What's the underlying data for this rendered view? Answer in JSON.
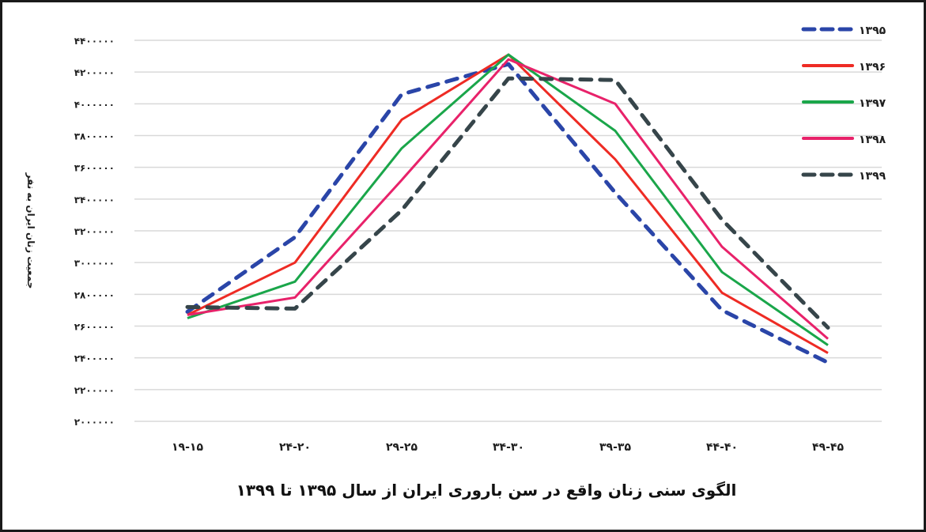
{
  "chart_data": {
    "type": "line",
    "title": "الگوی سنی زنان واقع در سن باروری ایران از سال ۱۳۹۵ تا ۱۳۹۹",
    "xlabel": "",
    "ylabel": "جمعیت زنان ایران به نفر",
    "categories": [
      "۱۹-۱۵",
      "۲۴-۲۰",
      "۲۹-۲۵",
      "۳۴-۳۰",
      "۳۹-۳۵",
      "۴۴-۴۰",
      "۴۹-۴۵"
    ],
    "categories_latin": [
      "15-19",
      "20-24",
      "25-29",
      "30-34",
      "35-39",
      "40-44",
      "45-49"
    ],
    "ylim": [
      2000000,
      4400000
    ],
    "yticks": [
      2000000,
      2200000,
      2400000,
      2600000,
      2800000,
      3000000,
      3200000,
      3400000,
      3600000,
      3800000,
      4000000,
      4200000,
      4400000
    ],
    "ytick_labels": [
      "۲۰۰۰۰۰۰",
      "۲۲۰۰۰۰۰",
      "۲۴۰۰۰۰۰",
      "۲۶۰۰۰۰۰",
      "۲۸۰۰۰۰۰",
      "۳۰۰۰۰۰۰",
      "۳۲۰۰۰۰۰",
      "۳۴۰۰۰۰۰",
      "۳۶۰۰۰۰۰",
      "۳۸۰۰۰۰۰",
      "۴۰۰۰۰۰۰",
      "۴۲۰۰۰۰۰",
      "۴۴۰۰۰۰۰"
    ],
    "grid": true,
    "legend_position": "top-right",
    "series": [
      {
        "name": "۱۳۹۵",
        "color": "#2a45a8",
        "dashed": true,
        "values": [
          2690000,
          3160000,
          4060000,
          4250000,
          3440000,
          2700000,
          2370000
        ]
      },
      {
        "name": "۱۳۹۶",
        "color": "#ee2b24",
        "dashed": false,
        "values": [
          2670000,
          3000000,
          3900000,
          4310000,
          3650000,
          2810000,
          2430000
        ]
      },
      {
        "name": "۱۳۹۷",
        "color": "#1aa64a",
        "dashed": false,
        "values": [
          2650000,
          2880000,
          3720000,
          4310000,
          3830000,
          2940000,
          2480000
        ]
      },
      {
        "name": "۱۳۹۸",
        "color": "#e8226a",
        "dashed": false,
        "values": [
          2670000,
          2780000,
          3520000,
          4280000,
          4000000,
          3100000,
          2520000
        ]
      },
      {
        "name": "۱۳۹۹",
        "color": "#36454a",
        "dashed": true,
        "values": [
          2720000,
          2710000,
          3330000,
          4160000,
          4150000,
          3270000,
          2590000
        ]
      }
    ]
  }
}
